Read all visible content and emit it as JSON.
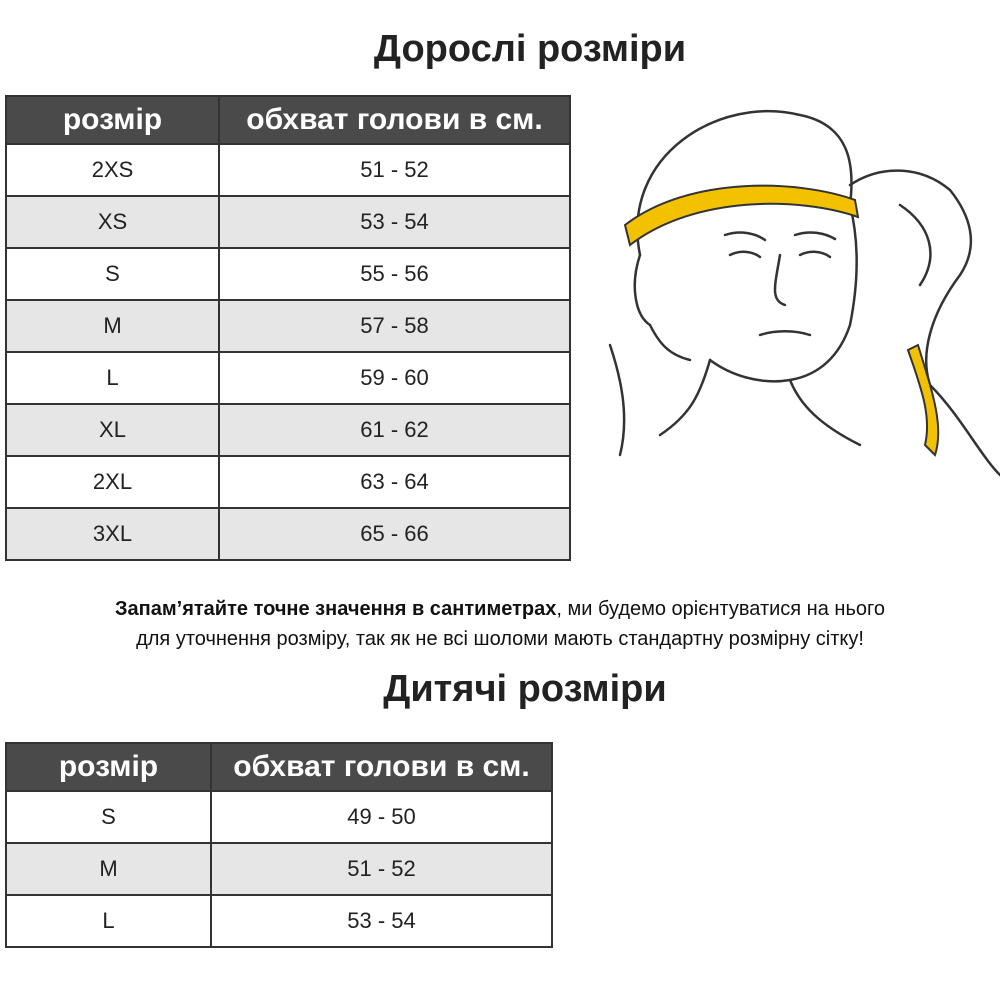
{
  "adult": {
    "title": "Дорослі розміри",
    "headers": [
      "розмір",
      "обхват голови в см."
    ],
    "rows": [
      [
        "2XS",
        "51 - 52"
      ],
      [
        "XS",
        "53 - 54"
      ],
      [
        "S",
        "55 - 56"
      ],
      [
        "M",
        "57 - 58"
      ],
      [
        "L",
        "59 - 60"
      ],
      [
        "XL",
        "61 - 62"
      ],
      [
        "2XL",
        "63 - 64"
      ],
      [
        "3XL",
        "65 - 66"
      ]
    ]
  },
  "note": {
    "bold": "Запам’ятайте точне значення в сантиметрах",
    "rest_line1": ", ми будемо орієнтуватися на нього",
    "line2": "для уточнення розміру, так як не всі шоломи мають стандартну розмірну сітку!"
  },
  "child": {
    "title": "Дитячі розміри",
    "headers": [
      "розмір",
      "обхват голови в см."
    ],
    "rows": [
      [
        "S",
        "49 - 50"
      ],
      [
        "M",
        "51 - 52"
      ],
      [
        "L",
        "53 - 54"
      ]
    ]
  },
  "colors": {
    "header_bg": "#4a4a4a",
    "alt_row": "#e6e6e6",
    "tape": "#f2c200"
  },
  "illustration": "head-measurement-illustration"
}
